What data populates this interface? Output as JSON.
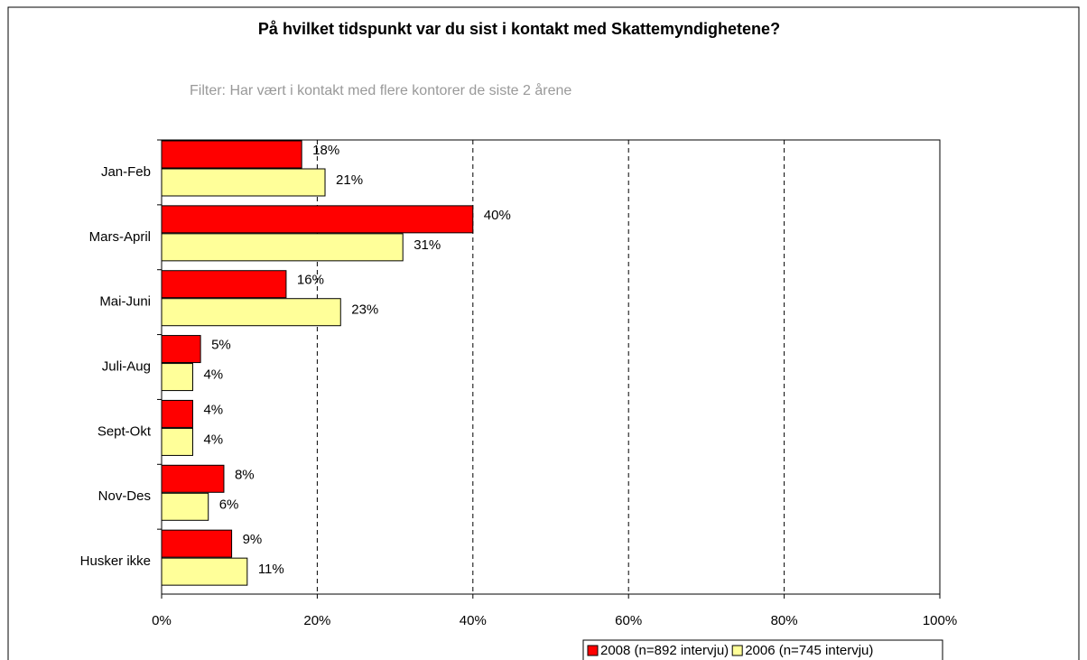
{
  "chart_data": {
    "type": "bar",
    "orientation": "horizontal",
    "title": "På hvilket tidspunkt var du sist i kontakt med Skattemyndighetene?",
    "subtitle": "Filter: Har vært i kontakt med flere kontorer de siste 2 årene",
    "categories": [
      "Jan-Feb",
      "Mars-April",
      "Mai-Juni",
      "Juli-Aug",
      "Sept-Okt",
      "Nov-Des",
      "Husker ikke"
    ],
    "series": [
      {
        "name": "2008 (n=892 intervju)",
        "color": "#ff0000",
        "values": [
          18,
          40,
          16,
          5,
          4,
          8,
          9
        ],
        "value_labels": [
          "18%",
          "40%",
          "16%",
          "5%",
          "4%",
          "8%",
          "9%"
        ]
      },
      {
        "name": "2006 (n=745 intervju)",
        "color": "#ffff99",
        "values": [
          21,
          31,
          23,
          4,
          4,
          6,
          11
        ],
        "value_labels": [
          "21%",
          "31%",
          "23%",
          "4%",
          "4%",
          "6%",
          "11%"
        ]
      }
    ],
    "xlim": [
      0,
      100
    ],
    "xticks": [
      {
        "value": 0,
        "label": "0%"
      },
      {
        "value": 20,
        "label": "20%"
      },
      {
        "value": 40,
        "label": "40%"
      },
      {
        "value": 60,
        "label": "60%"
      },
      {
        "value": 80,
        "label": "80%"
      },
      {
        "value": 100,
        "label": "100%"
      }
    ],
    "grid": true,
    "legend": "bottom-right"
  }
}
